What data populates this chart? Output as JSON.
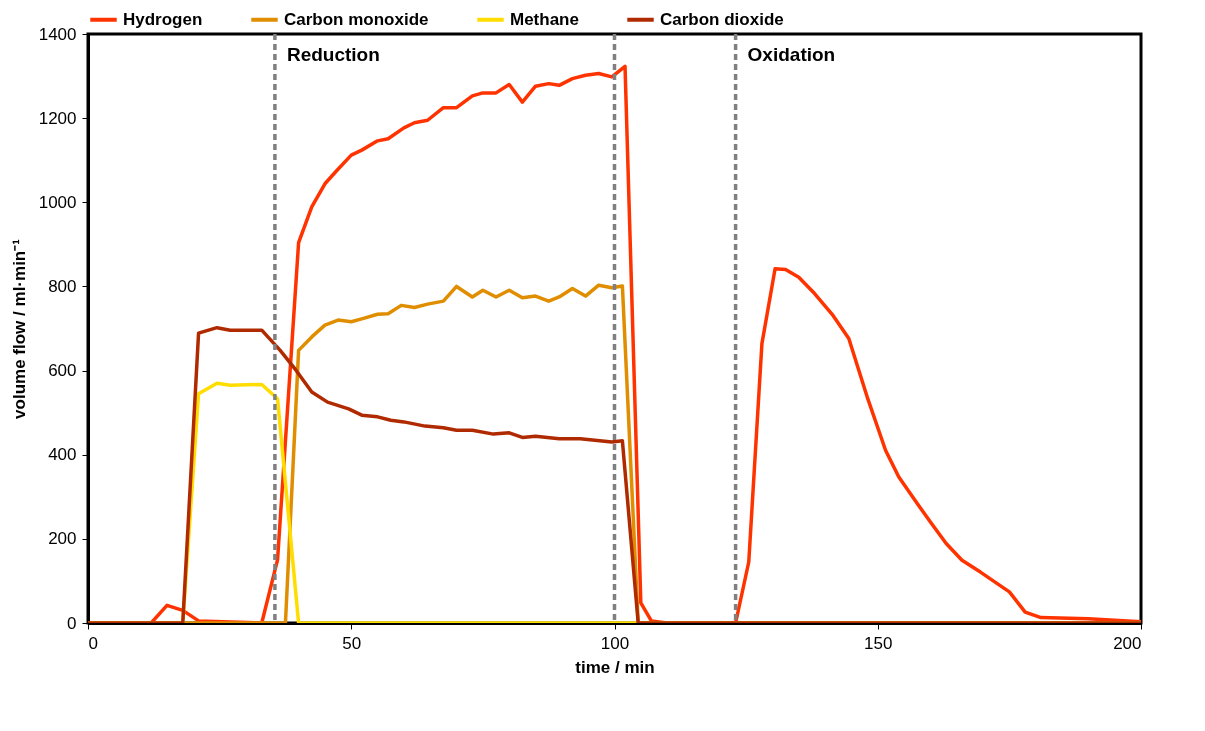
{
  "chart_data": {
    "type": "line",
    "xlabel": "time / min",
    "ylabel": "volume flow / ml·min⁻¹",
    "xlim": [
      0,
      200
    ],
    "xticks": [
      0,
      50,
      100,
      150,
      200
    ],
    "ylim": [
      0,
      1400
    ],
    "yticks": [
      0,
      200,
      400,
      600,
      800,
      1000,
      1200,
      1400
    ],
    "grid": false,
    "legend": "top",
    "marker": "none",
    "line_style": "solid",
    "series": [
      {
        "name": "Hydrogen",
        "color": "#ff3300",
        "x": [
          0,
          12,
          15,
          18,
          21,
          33,
          36,
          40,
          42.5,
          45,
          47,
          50,
          52,
          55,
          57,
          60,
          62,
          64.5,
          67.5,
          70,
          73,
          75,
          77.5,
          80,
          82.5,
          85,
          87.5,
          89.5,
          92,
          94.5,
          97,
          99.5,
          102,
          105,
          107,
          110,
          123,
          125.5,
          128,
          130.5,
          132.5,
          135,
          138,
          141.5,
          144.5,
          148,
          151.5,
          154,
          157.5,
          160,
          163,
          166,
          169.5,
          175,
          178,
          181,
          190,
          200
        ],
        "values": [
          0,
          0,
          42,
          30,
          5,
          0,
          150,
          904,
          989,
          1044,
          1072,
          1112,
          1124,
          1146,
          1151,
          1177,
          1189,
          1195,
          1225,
          1225,
          1253,
          1260,
          1260,
          1280,
          1238,
          1276,
          1282,
          1278,
          1294,
          1302,
          1306,
          1298,
          1323,
          48,
          5,
          0,
          0,
          145,
          664,
          842,
          840,
          822,
          783,
          731,
          676,
          537,
          410,
          347,
          284,
          240,
          189,
          149,
          121,
          74,
          26,
          13,
          10,
          3
        ]
      },
      {
        "name": "Carbon monoxide",
        "color": "#e08e00",
        "x": [
          0,
          37.5,
          40,
          42.5,
          45,
          47.5,
          50,
          52,
          55,
          57,
          59.5,
          62,
          64.5,
          67.5,
          70,
          73,
          75,
          77.5,
          80,
          82.5,
          85,
          87.5,
          89.5,
          92,
          94.5,
          97,
          99.5,
          101.5,
          104.5,
          200
        ],
        "values": [
          0,
          0,
          648,
          680,
          708,
          720,
          716,
          723,
          734,
          735,
          755,
          750,
          758,
          765,
          800,
          775,
          791,
          775,
          791,
          773,
          777,
          765,
          775,
          795,
          777,
          803,
          797,
          801,
          0,
          0
        ]
      },
      {
        "name": "Methane",
        "color": "#ffdd00",
        "x": [
          0,
          18,
          21,
          24.5,
          27,
          33,
          36,
          40,
          200
        ],
        "values": [
          0,
          0,
          545,
          570,
          565,
          567,
          533,
          0,
          0
        ]
      },
      {
        "name": "Carbon dioxide",
        "color": "#b02a00",
        "x": [
          0,
          18,
          21,
          24.5,
          27,
          33,
          36.5,
          39.5,
          42.5,
          45.5,
          49.5,
          52,
          55,
          57.5,
          60,
          64,
          67.5,
          70,
          73,
          77,
          80,
          82.5,
          85,
          89.5,
          93.5,
          99.5,
          101.5,
          104.5,
          200
        ],
        "values": [
          0,
          0,
          689,
          702,
          696,
          696,
          648,
          601,
          549,
          525,
          509,
          494,
          490,
          482,
          478,
          468,
          464,
          458,
          458,
          449,
          452,
          441,
          444,
          438,
          438,
          430,
          433,
          0,
          0
        ]
      }
    ],
    "ref_lines": [
      {
        "axis": "x",
        "value": 35.5,
        "label": "Reduction",
        "color": "#808080",
        "line_style": "dashed"
      },
      {
        "axis": "x",
        "value": 100,
        "label": null,
        "color": "#808080",
        "line_style": "dashed"
      },
      {
        "axis": "x",
        "value": 123,
        "label": "Oxidation",
        "color": "#808080",
        "line_style": "dashed"
      }
    ]
  }
}
